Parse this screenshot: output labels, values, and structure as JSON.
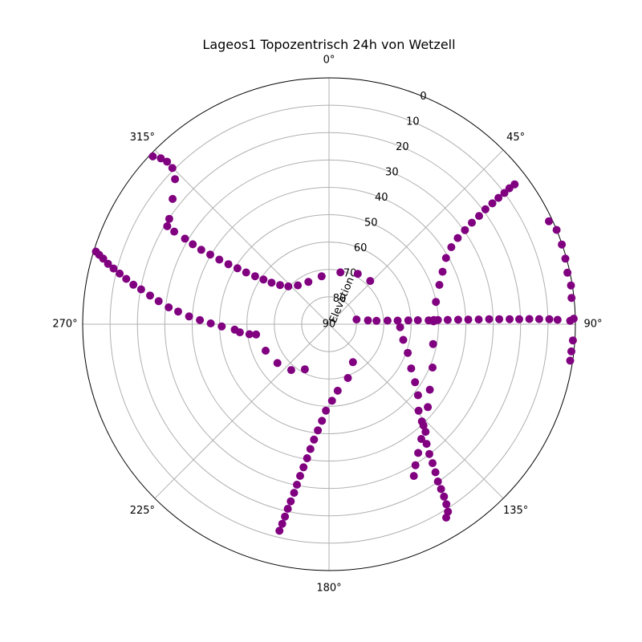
{
  "chart_data": {
    "type": "scatter",
    "projection": "polar",
    "title": "Lageos1 Topozentrisch 24h von Wetzell",
    "radial_label": "Elevation",
    "theta_direction": "clockwise",
    "theta_zero": "north",
    "theta_ticks": [
      "0°",
      "45°",
      "90°",
      "135°",
      "180°",
      "225°",
      "270°",
      "315°"
    ],
    "r_ticks": [
      "0",
      "10",
      "20",
      "30",
      "40",
      "50",
      "60",
      "70",
      "80",
      "90"
    ],
    "elevation_range": [
      90,
      0
    ],
    "grid": true,
    "marker_color": "#800080",
    "series": [
      {
        "points": [
          {
            "az": 80.2,
            "el": 79.8
          },
          {
            "az": 84.3,
            "el": 75.7
          },
          {
            "az": 85.9,
            "el": 72.6
          },
          {
            "az": 86.5,
            "el": 68.6
          },
          {
            "az": 87.0,
            "el": 64.9
          },
          {
            "az": 87.3,
            "el": 61.0
          },
          {
            "az": 87.4,
            "el": 57.5
          },
          {
            "az": 87.8,
            "el": 53.6
          },
          {
            "az": 87.7,
            "el": 51.7
          },
          {
            "az": 87.8,
            "el": 50.2
          },
          {
            "az": 87.9,
            "el": 46.6
          },
          {
            "az": 88.0,
            "el": 42.8
          },
          {
            "az": 88.1,
            "el": 39.1
          },
          {
            "az": 88.2,
            "el": 35.3
          },
          {
            "az": 88.2,
            "el": 31.5
          },
          {
            "az": 88.3,
            "el": 27.8
          },
          {
            "az": 88.4,
            "el": 24.0
          },
          {
            "az": 88.5,
            "el": 20.5
          },
          {
            "az": 88.5,
            "el": 16.8
          },
          {
            "az": 88.6,
            "el": 13.2
          },
          {
            "az": 88.7,
            "el": 9.5
          },
          {
            "az": 88.9,
            "el": 6.5
          },
          {
            "az": 89.2,
            "el": 1.9
          },
          {
            "az": 88.7,
            "el": 0.6
          }
        ]
      },
      {
        "points": [
          {
            "az": 53.0,
            "el": 5.1
          },
          {
            "az": 53.0,
            "el": 7.5
          },
          {
            "az": 53.2,
            "el": 10.0
          },
          {
            "az": 53.3,
            "el": 12.8
          },
          {
            "az": 53.5,
            "el": 15.8
          },
          {
            "az": 53.7,
            "el": 19.1
          },
          {
            "az": 54.2,
            "el": 22.4
          },
          {
            "az": 54.6,
            "el": 26.0
          },
          {
            "az": 55.3,
            "el": 29.6
          },
          {
            "az": 56.2,
            "el": 33.4
          },
          {
            "az": 57.8,
            "el": 37.2
          },
          {
            "az": 60.5,
            "el": 40.9
          },
          {
            "az": 65.2,
            "el": 44.3
          },
          {
            "az": 70.4,
            "el": 47.2
          },
          {
            "az": 78.2,
            "el": 50.1
          },
          {
            "az": 88.4,
            "el": 51.8
          },
          {
            "az": 100.8,
            "el": 51.3
          },
          {
            "az": 112.7,
            "el": 49.0
          },
          {
            "az": 123.0,
            "el": 46.1
          },
          {
            "az": 130.0,
            "el": 42.9
          },
          {
            "az": 137.0,
            "el": 39.4
          },
          {
            "az": 141.2,
            "el": 36.2
          },
          {
            "az": 145.3,
            "el": 32.8
          },
          {
            "az": 148.5,
            "el": 29.6
          },
          {
            "az": 150.8,
            "el": 26.5
          }
        ]
      },
      {
        "points": [
          {
            "az": 64.9,
            "el": 1.3
          },
          {
            "az": 67.5,
            "el": 0.0
          },
          {
            "az": 71.1,
            "el": 0.1
          },
          {
            "az": 74.5,
            "el": 0.4
          },
          {
            "az": 77.8,
            "el": 0.9
          },
          {
            "az": 80.9,
            "el": 0.5
          },
          {
            "az": 83.8,
            "el": 0.9
          },
          {
            "az": 93.8,
            "el": 0.7
          },
          {
            "az": 96.4,
            "el": 0.9
          },
          {
            "az": 98.6,
            "el": 0.9
          }
        ]
      },
      {
        "points": [
          {
            "az": 148.8,
            "el": 7.4
          },
          {
            "az": 147.6,
            "el": 8.9
          },
          {
            "az": 146.9,
            "el": 11.5
          },
          {
            "az": 146.3,
            "el": 14.3
          },
          {
            "az": 145.8,
            "el": 17.2
          },
          {
            "az": 145.3,
            "el": 20.1
          },
          {
            "az": 144.3,
            "el": 23.4
          },
          {
            "az": 143.3,
            "el": 26.7
          },
          {
            "az": 142.3,
            "el": 30.1
          },
          {
            "az": 140.8,
            "el": 33.6
          },
          {
            "az": 138.1,
            "el": 37.2
          },
          {
            "az": 136.3,
            "el": 40.9
          },
          {
            "az": 134.0,
            "el": 44.5
          },
          {
            "az": 128.6,
            "el": 48.4
          },
          {
            "az": 124.0,
            "el": 52.1
          },
          {
            "az": 118.3,
            "el": 55.9
          },
          {
            "az": 110.0,
            "el": 59.4
          },
          {
            "az": 101.9,
            "el": 62.3
          },
          {
            "az": 92.4,
            "el": 64.0
          }
        ]
      },
      {
        "points": [
          {
            "az": 147.8,
            "el": 73.6
          },
          {
            "az": 160.7,
            "el": 69.2
          },
          {
            "az": 172.6,
            "el": 65.5
          },
          {
            "az": 177.8,
            "el": 62.0
          },
          {
            "az": 182.1,
            "el": 58.4
          },
          {
            "az": 184.2,
            "el": 54.6
          },
          {
            "az": 186.0,
            "el": 51.0
          },
          {
            "az": 187.4,
            "el": 47.5
          },
          {
            "az": 188.5,
            "el": 43.9
          },
          {
            "az": 189.3,
            "el": 40.4
          },
          {
            "az": 190.1,
            "el": 36.9
          },
          {
            "az": 190.8,
            "el": 33.6
          },
          {
            "az": 191.3,
            "el": 30.2
          },
          {
            "az": 191.7,
            "el": 27.1
          },
          {
            "az": 192.2,
            "el": 23.8
          },
          {
            "az": 192.6,
            "el": 20.9
          },
          {
            "az": 192.9,
            "el": 17.9
          },
          {
            "az": 193.2,
            "el": 15.1
          },
          {
            "az": 193.5,
            "el": 12.4
          }
        ]
      },
      {
        "points": [
          {
            "az": 208.2,
            "el": 71.3
          },
          {
            "az": 219.5,
            "el": 68.3
          },
          {
            "az": 233.0,
            "el": 66.4
          },
          {
            "az": 247.3,
            "el": 64.9
          },
          {
            "az": 262.0,
            "el": 63.1
          },
          {
            "az": 262.8,
            "el": 60.7
          },
          {
            "az": 264.8,
            "el": 57.3
          },
          {
            "az": 266.7,
            "el": 55.5
          },
          {
            "az": 268.8,
            "el": 50.8
          },
          {
            "az": 270.4,
            "el": 46.8
          },
          {
            "az": 271.8,
            "el": 42.8
          },
          {
            "az": 273.2,
            "el": 38.8
          },
          {
            "az": 274.8,
            "el": 34.7
          },
          {
            "az": 276.0,
            "el": 31.1
          },
          {
            "az": 277.7,
            "el": 27.2
          },
          {
            "az": 279.1,
            "el": 23.8
          },
          {
            "az": 280.5,
            "el": 20.2
          },
          {
            "az": 281.4,
            "el": 17.1
          },
          {
            "az": 282.6,
            "el": 14.1
          },
          {
            "az": 283.6,
            "el": 11.3
          },
          {
            "az": 284.5,
            "el": 8.7
          },
          {
            "az": 285.3,
            "el": 6.3
          },
          {
            "az": 286.2,
            "el": 4.1
          },
          {
            "az": 286.8,
            "el": 2.3
          },
          {
            "az": 287.3,
            "el": 0.8
          }
        ]
      },
      {
        "points": [
          {
            "az": 313.6,
            "el": 1.1
          },
          {
            "az": 314.6,
            "el": 3.7
          },
          {
            "az": 315.1,
            "el": 6.2
          },
          {
            "az": 314.9,
            "el": 9.2
          },
          {
            "az": 313.3,
            "el": 12.7
          },
          {
            "az": 308.7,
            "el": 16.8
          },
          {
            "az": 303.4,
            "el": 20.1
          },
          {
            "az": 301.2,
            "el": 20.9
          },
          {
            "az": 300.9,
            "el": 24.1
          },
          {
            "az": 300.7,
            "el": 28.8
          },
          {
            "az": 300.4,
            "el": 32.3
          },
          {
            "az": 300.2,
            "el": 36.0
          },
          {
            "az": 300.4,
            "el": 39.7
          },
          {
            "az": 300.5,
            "el": 43.5
          },
          {
            "az": 300.8,
            "el": 47.2
          },
          {
            "az": 301.4,
            "el": 50.8
          },
          {
            "az": 302.0,
            "el": 54.3
          },
          {
            "az": 303.0,
            "el": 57.8
          },
          {
            "az": 304.3,
            "el": 61.0
          },
          {
            "az": 305.9,
            "el": 64.1
          },
          {
            "az": 308.7,
            "el": 67.1
          },
          {
            "az": 312.9,
            "el": 69.7
          },
          {
            "az": 321.2,
            "el": 71.8
          },
          {
            "az": 334.0,
            "el": 72.8
          },
          {
            "az": 351.2,
            "el": 72.3
          },
          {
            "az": 12.4,
            "el": 70.6
          },
          {
            "az": 29.7,
            "el": 68.8
          },
          {
            "az": 43.6,
            "el": 68.2
          }
        ]
      }
    ]
  }
}
